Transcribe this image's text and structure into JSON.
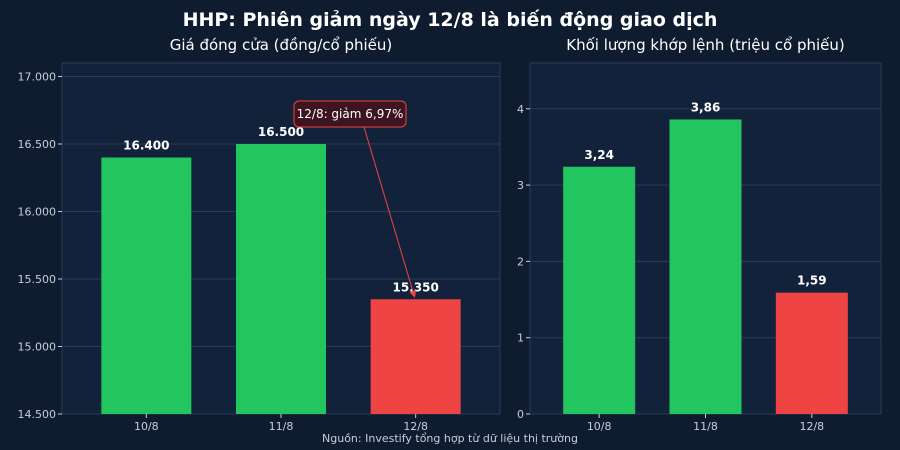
{
  "title": "HHP: Phiên giảm ngày 12/8 là biến động giao dịch",
  "source": "Nguồn: Investify tổng hợp từ dữ liệu thị trường",
  "colors": {
    "background": "#0f1b2e",
    "panel": "#13223b",
    "panel_border": "#2b3c57",
    "grid": "#2a3b57",
    "tick_text": "#c5cedb",
    "up": "#22c55e",
    "down": "#ef4444",
    "annotation_fill": "#3d1420",
    "annotation_stroke": "#ef4444"
  },
  "chart_data": [
    {
      "type": "bar",
      "title": "Giá đóng cửa (đồng/cổ phiếu)",
      "categories": [
        "10/8",
        "11/8",
        "12/8"
      ],
      "values": [
        16400,
        16500,
        15350
      ],
      "value_labels": [
        "16.400",
        "16.500",
        "15.350"
      ],
      "bar_colors": [
        "#22c55e",
        "#22c55e",
        "#ef4444"
      ],
      "ylim": [
        14500,
        17100
      ],
      "yticks": [
        14500,
        15000,
        15500,
        16000,
        16500,
        17000
      ],
      "ytick_labels": [
        "14.500",
        "15.000",
        "15.500",
        "16.000",
        "16.500",
        "17.000"
      ],
      "grid": true,
      "annotation": {
        "text": "12/8: giảm 6,97%",
        "target_category": "12/8"
      }
    },
    {
      "type": "bar",
      "title": "Khối lượng khớp lệnh (triệu cổ phiếu)",
      "categories": [
        "10/8",
        "11/8",
        "12/8"
      ],
      "values": [
        3.24,
        3.86,
        1.59
      ],
      "value_labels": [
        "3,24",
        "3,86",
        "1,59"
      ],
      "bar_colors": [
        "#22c55e",
        "#22c55e",
        "#ef4444"
      ],
      "ylim": [
        0,
        4.6
      ],
      "yticks": [
        0,
        1,
        2,
        3,
        4
      ],
      "ytick_labels": [
        "0",
        "1",
        "2",
        "3",
        "4"
      ],
      "grid": true
    }
  ]
}
